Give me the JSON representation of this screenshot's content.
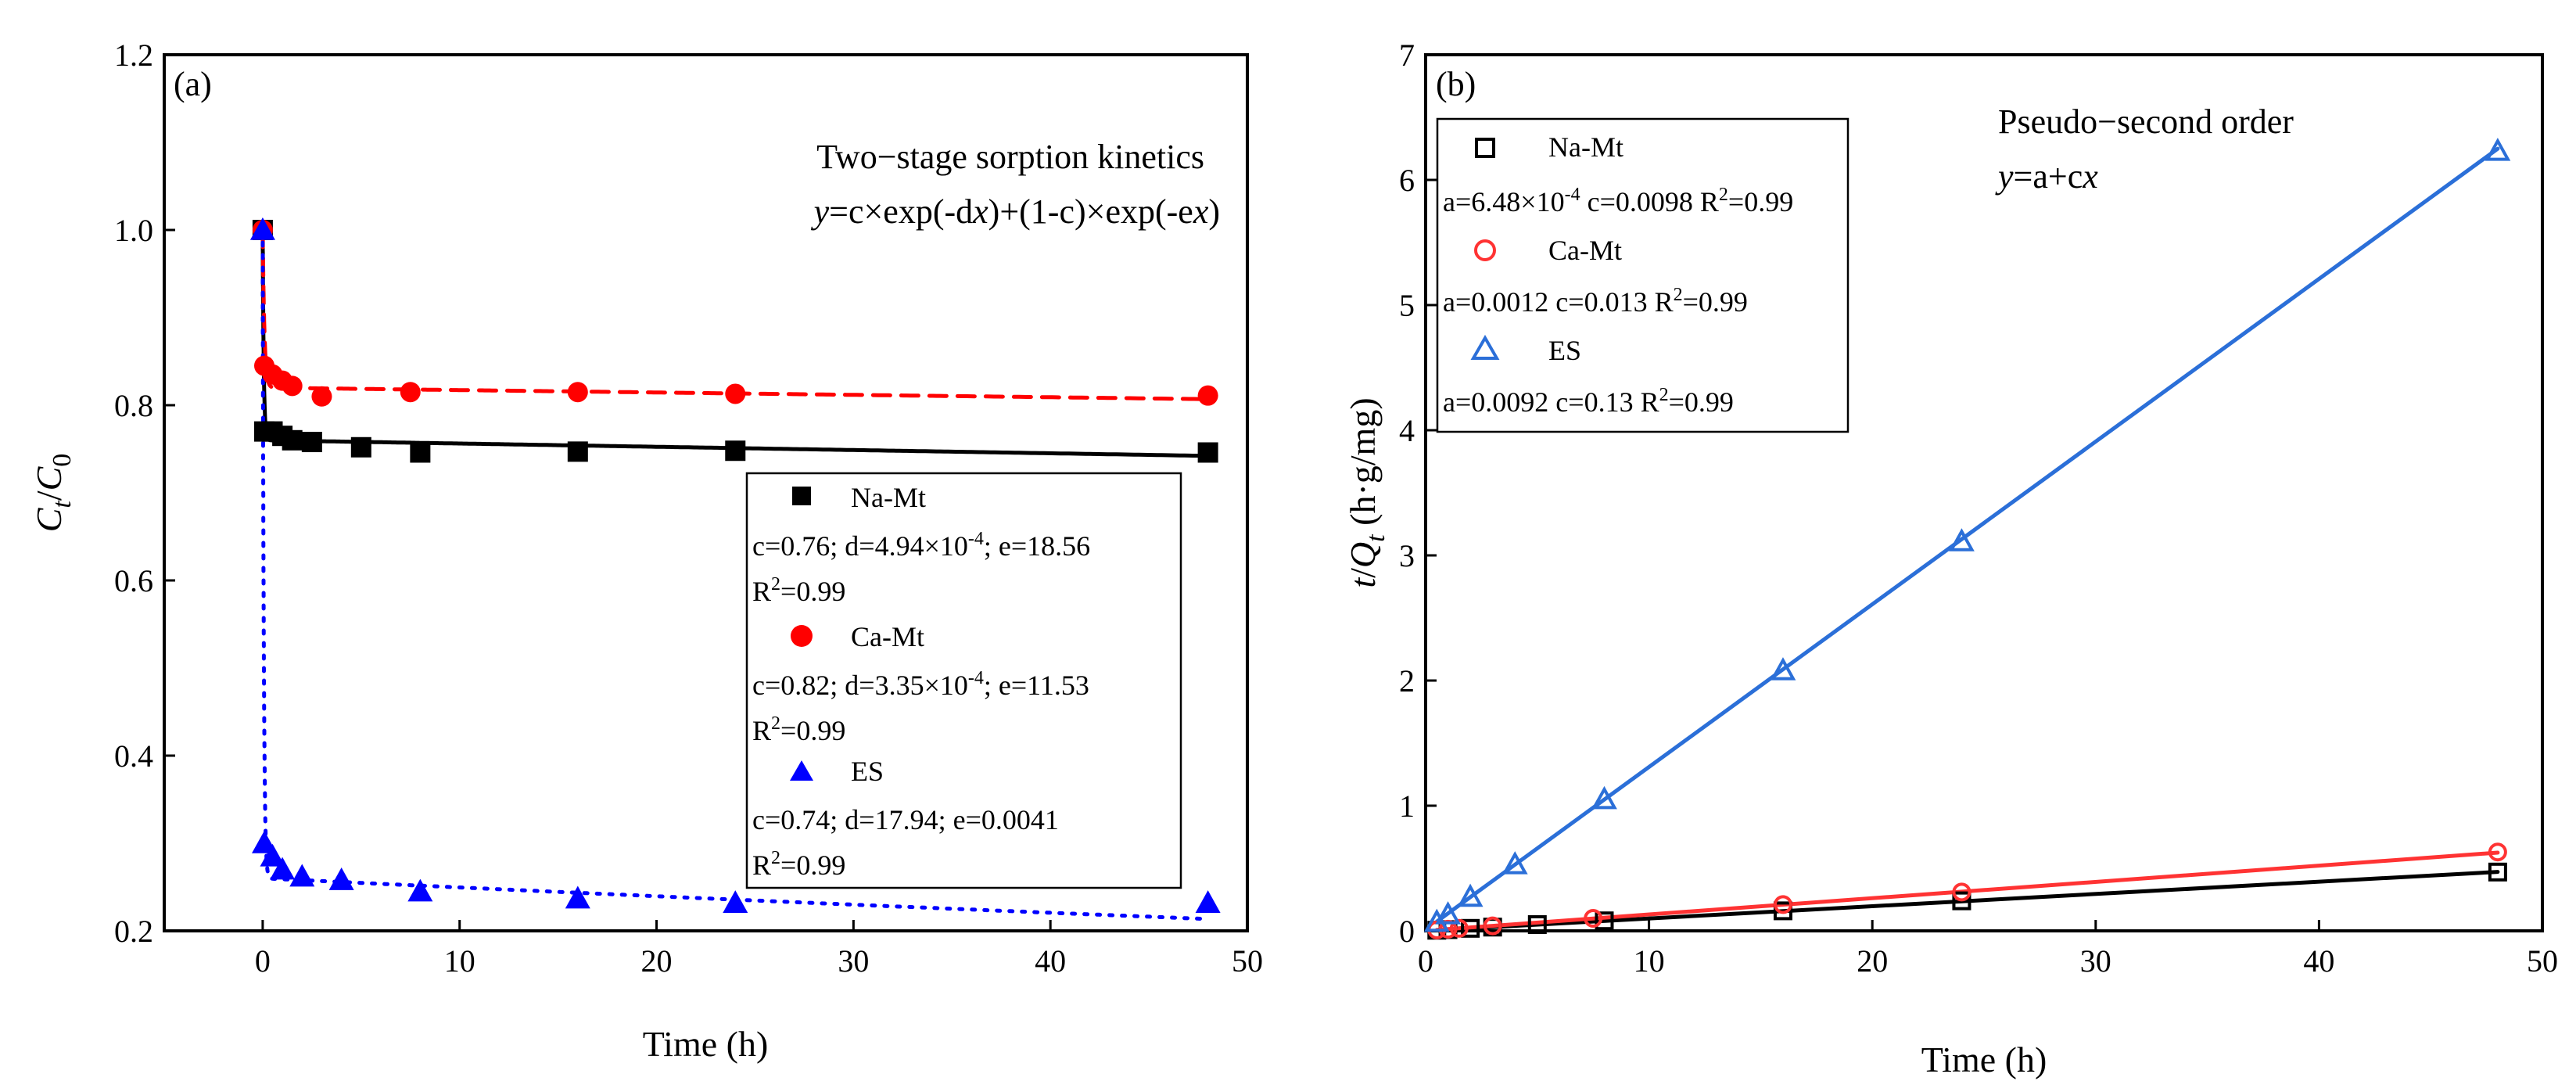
{
  "chart_data": [
    {
      "type": "scatter",
      "panel_label": "(a)",
      "annotation": {
        "title": "Two−stage sorption kinetics",
        "equation": "y=c×exp(-dx)+(1-c)×exp(-ex)"
      },
      "xlabel": "Time (h)",
      "ylabel": "Ct/C0",
      "xlim": [
        -5,
        50
      ],
      "ylim": [
        0.2,
        1.2
      ],
      "xticks": [
        0,
        10,
        20,
        30,
        40,
        50
      ],
      "yticks": [
        0.2,
        0.4,
        0.6,
        0.8,
        1.0,
        1.2
      ],
      "legend_position": "lower-right",
      "series": [
        {
          "name": "Na-Mt",
          "color": "#000000",
          "marker": "square-filled",
          "line": "solid",
          "params": {
            "c": 0.76,
            "d": 0.000494,
            "e": 18.56
          },
          "params_text": "c=0.76; d=4.94×10-4; e=18.56",
          "r2_text": "R2=0.99",
          "x": [
            0,
            0.083,
            0.5,
            1,
            1.5,
            2.5,
            5,
            8,
            16,
            24,
            48
          ],
          "y": [
            1.0,
            0.77,
            0.77,
            0.765,
            0.76,
            0.758,
            0.752,
            0.746,
            0.747,
            0.748,
            0.746
          ]
        },
        {
          "name": "Ca-Mt",
          "color": "#ff0000",
          "marker": "circle-filled",
          "line": "dashed",
          "params": {
            "c": 0.82,
            "d": 0.000335,
            "e": 11.53
          },
          "params_text": "c=0.82; d=3.35×10-4; e=11.53",
          "r2_text": "R2=0.99",
          "x": [
            0,
            0.083,
            0.5,
            1,
            1.5,
            3,
            7.5,
            16,
            24,
            48
          ],
          "y": [
            1.0,
            0.845,
            0.835,
            0.828,
            0.822,
            0.81,
            0.815,
            0.815,
            0.813,
            0.811
          ]
        },
        {
          "name": "ES",
          "color": "#0000ff",
          "marker": "triangle-filled",
          "line": "dotted",
          "params": {
            "c": 0.74,
            "d": 17.94,
            "e": 0.0041
          },
          "params_text": "c=0.74; d=17.94; e=0.0041",
          "r2_text": "R2=0.99",
          "x": [
            0,
            0.083,
            0.5,
            1,
            2,
            4,
            8,
            16,
            24,
            48
          ],
          "y": [
            1.0,
            0.3,
            0.285,
            0.27,
            0.262,
            0.258,
            0.245,
            0.237,
            0.232,
            0.232
          ]
        }
      ]
    },
    {
      "type": "scatter",
      "panel_label": "(b)",
      "annotation": {
        "title": "Pseudo−second order",
        "equation": "y=a+cx"
      },
      "xlabel": "Time (h)",
      "ylabel": "t/Qt (h·g/mg)",
      "xlim": [
        0,
        50
      ],
      "ylim": [
        0,
        7
      ],
      "xticks": [
        0,
        10,
        20,
        30,
        40,
        50
      ],
      "yticks": [
        0,
        1,
        2,
        3,
        4,
        5,
        6,
        7
      ],
      "legend_position": "top-left",
      "series": [
        {
          "name": "Na-Mt",
          "color": "#000000",
          "marker": "square-open",
          "line": "solid",
          "params": {
            "a": 0.000648,
            "c": 0.0098
          },
          "params_text": "a=6.48×10-4 c=0.0098 R2=0.99",
          "x": [
            0.5,
            1,
            2,
            3,
            5,
            8,
            16,
            24,
            48
          ],
          "y": [
            0.005,
            0.01,
            0.02,
            0.03,
            0.05,
            0.08,
            0.16,
            0.24,
            0.47
          ]
        },
        {
          "name": "Ca-Mt",
          "color": "#ff3333",
          "marker": "circle-open",
          "line": "solid",
          "params": {
            "a": 0.0012,
            "c": 0.013
          },
          "params_text": "a=0.0012 c=0.013 R2=0.99",
          "x": [
            0.5,
            1,
            1.5,
            3,
            7.5,
            16,
            24,
            48
          ],
          "y": [
            0.007,
            0.013,
            0.02,
            0.04,
            0.1,
            0.21,
            0.31,
            0.63
          ]
        },
        {
          "name": "ES",
          "color": "#2b6fd8",
          "marker": "triangle-open",
          "line": "solid",
          "params": {
            "a": 0.0092,
            "c": 0.13
          },
          "params_text": "a=0.0092 c=0.13 R2=0.99",
          "x": [
            0.5,
            1,
            2,
            4,
            8,
            16,
            24,
            48
          ],
          "y": [
            0.07,
            0.13,
            0.27,
            0.53,
            1.05,
            2.08,
            3.11,
            6.23
          ]
        }
      ]
    }
  ]
}
